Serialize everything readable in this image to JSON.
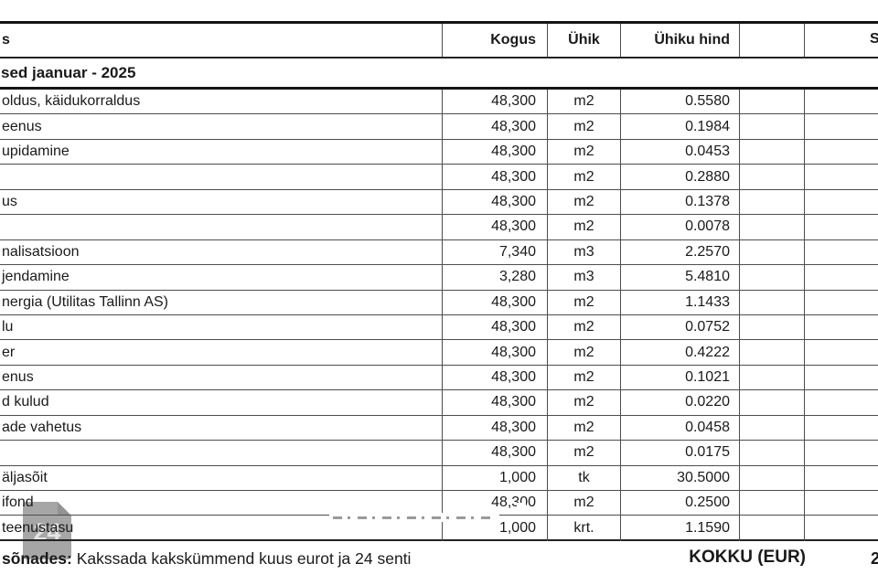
{
  "header": {
    "item": "s",
    "kogus": "Kogus",
    "uhik": "Ühik",
    "uhiku_hind": "Ühiku hind",
    "extra": "",
    "summa": "S"
  },
  "period": "sed jaanuar - 2025",
  "rows": [
    {
      "name": "oldus, käidukorraldus",
      "kogus": "48,300",
      "uhik": "m2",
      "hind": "0.5580"
    },
    {
      "name": "eenus",
      "kogus": "48,300",
      "uhik": "m2",
      "hind": "0.1984"
    },
    {
      "name": "upidamine",
      "kogus": "48,300",
      "uhik": "m2",
      "hind": "0.0453"
    },
    {
      "name": "",
      "kogus": "48,300",
      "uhik": "m2",
      "hind": "0.2880"
    },
    {
      "name": "us",
      "kogus": "48,300",
      "uhik": "m2",
      "hind": "0.1378"
    },
    {
      "name": "",
      "kogus": "48,300",
      "uhik": "m2",
      "hind": "0.0078"
    },
    {
      "name": "nalisatsioon",
      "kogus": "7,340",
      "uhik": "m3",
      "hind": "2.2570"
    },
    {
      "name": "jendamine",
      "kogus": "3,280",
      "uhik": "m3",
      "hind": "5.4810"
    },
    {
      "name": "nergia (Utilitas Tallinn AS)",
      "kogus": "48,300",
      "uhik": "m2",
      "hind": "1.1433"
    },
    {
      "name": "lu",
      "kogus": "48,300",
      "uhik": "m2",
      "hind": "0.0752"
    },
    {
      "name": "er",
      "kogus": "48,300",
      "uhik": "m2",
      "hind": "0.4222"
    },
    {
      "name": "enus",
      "kogus": "48,300",
      "uhik": "m2",
      "hind": "0.1021"
    },
    {
      "name": "d kulud",
      "kogus": "48,300",
      "uhik": "m2",
      "hind": "0.0220"
    },
    {
      "name": "ade vahetus",
      "kogus": "48,300",
      "uhik": "m2",
      "hind": "0.0458"
    },
    {
      "name": "",
      "kogus": "48,300",
      "uhik": "m2",
      "hind": "0.0175"
    },
    {
      "name": "äljasõit",
      "kogus": "1,000",
      "uhik": "tk",
      "hind": "30.5000"
    },
    {
      "name": "ifond",
      "kogus": "48,300",
      "uhik": "m2",
      "hind": "0.2500"
    },
    {
      "name": "  teenustasu",
      "kogus": "1,000",
      "uhik": "krt.",
      "hind": "1.1590"
    }
  ],
  "footer": {
    "words_label": "sõnades:",
    "words_text": " Kakssada kakskümmend kuus eurot ja 24 senti",
    "kokku": "KOKKU (EUR)",
    "summa_partial": "2"
  },
  "watermark": {
    "badge": "24"
  },
  "colors": {
    "rule_dark": "#141414",
    "grid_gray": "#4d4d4d",
    "badge_gray": "#6a6a6a"
  }
}
